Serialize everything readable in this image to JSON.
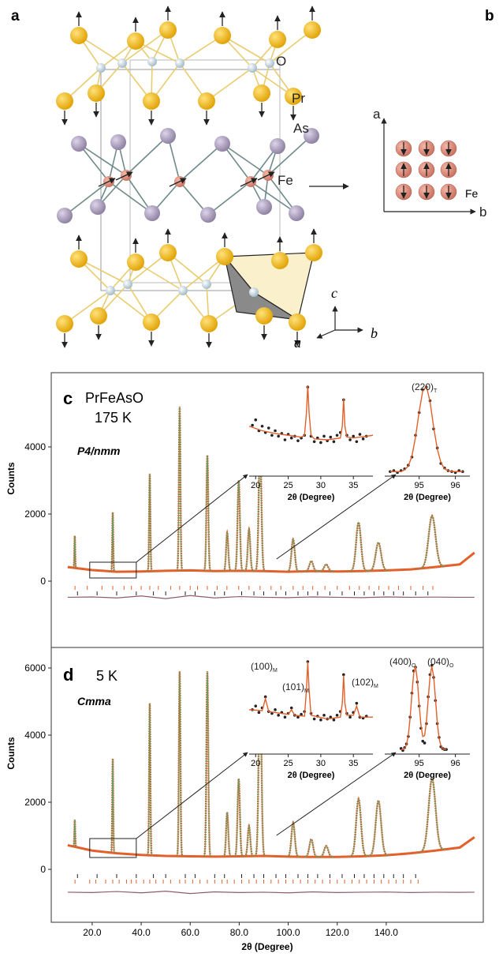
{
  "figure": {
    "panel_a": {
      "label": "a",
      "atoms": [
        "O",
        "Pr",
        "As",
        "Fe"
      ],
      "axes": [
        "c",
        "a",
        "b"
      ]
    },
    "panel_b": {
      "label": "b",
      "axes": [
        "a",
        "b"
      ],
      "atom": "Fe"
    }
  },
  "chart_data": [
    {
      "type": "diffraction",
      "panel": "c",
      "title": "PrFeAsO",
      "subtitle": "175 K",
      "space_group": "P4/nmm",
      "y_label": "Counts",
      "xlim": [
        3.3,
        179.6
      ],
      "ylim": [
        -1976,
        6212
      ],
      "yticks": [
        0,
        2000,
        4000
      ],
      "observed_color": "#e2602b",
      "calculated_color": "#5f9e63",
      "difference_color": "#8c5c70",
      "background": {
        "x": [
          10,
          20,
          30,
          40,
          50,
          60,
          70,
          80,
          90,
          100,
          110,
          120,
          130,
          140,
          150,
          160,
          170,
          176
        ],
        "values": [
          420,
          330,
          280,
          290,
          310,
          320,
          300,
          310,
          300,
          280,
          300,
          290,
          300,
          320,
          350,
          420,
          500,
          850
        ]
      },
      "peaks": {
        "x": [
          12.9,
          28.4,
          43.5,
          55.7,
          67.0,
          75.1,
          79.8,
          84.0,
          88.5,
          102.0,
          109.4,
          115.5,
          128.7,
          136.8,
          158.7
        ],
        "values": [
          1350,
          2050,
          3200,
          5200,
          3750,
          1450,
          3000,
          1550,
          4000,
          1250,
          600,
          500,
          1750,
          1150,
          1950
        ]
      },
      "reflections": [
        {
          "color": "#e2602b",
          "x": [
            13,
            18,
            24,
            28.4,
            33,
            36,
            40,
            43.5,
            47,
            52,
            55.7,
            60,
            63,
            67,
            71,
            75,
            79.8,
            84,
            88.5,
            93,
            97,
            102,
            106,
            110,
            115,
            120,
            125,
            129,
            133,
            137,
            141,
            145,
            150,
            155,
            159
          ]
        },
        {
          "color": "#222222",
          "x": [
            14,
            22,
            30,
            38,
            45,
            50,
            58,
            62,
            70,
            74,
            81,
            86,
            90,
            95,
            99,
            104,
            108,
            112,
            117,
            122,
            127,
            131,
            135,
            139,
            143,
            147,
            152,
            157
          ]
        }
      ],
      "difference": {
        "x": [
          10,
          20,
          30,
          40,
          50,
          60,
          70,
          80,
          90,
          100,
          110,
          120,
          130,
          140,
          150,
          160,
          170,
          176
        ],
        "values": [
          -480,
          -470,
          -500,
          -440,
          -520,
          -430,
          -500,
          -460,
          -480,
          -490,
          -470,
          -480,
          -490,
          -470,
          -480,
          -475,
          -480,
          -480
        ]
      },
      "insets": [
        {
          "type": "scatter",
          "xlim": [
            19,
            38
          ],
          "ylim": [
            0,
            100
          ],
          "xticks": [
            20,
            25,
            30,
            35
          ],
          "x_label": "2θ (Degree)",
          "observed": {
            "x": [
              19.5,
              20,
              20.5,
              21,
              21.5,
              22,
              22.5,
              23,
              23.5,
              24,
              24.5,
              25,
              25.5,
              26,
              26.5,
              27,
              27.5,
              28,
              28.5,
              29,
              29.5,
              30,
              30.5,
              31,
              31.5,
              32,
              32.5,
              33,
              33.5,
              34,
              34.5,
              35,
              35.5,
              36,
              36.5,
              37
            ],
            "values": [
              56,
              62,
              50,
              55,
              48,
              53,
              45,
              50,
              44,
              47,
              40,
              46,
              42,
              44,
              39,
              42,
              45,
              98,
              44,
              38,
              42,
              37,
              44,
              39,
              43,
              38,
              45,
              48,
              84,
              45,
              40,
              44,
              38,
              46,
              41,
              44
            ]
          },
          "calculated": {
            "x": [
              19,
              21,
              23,
              25,
              27,
              27.5,
              27.8,
              28,
              28.2,
              28.5,
              29,
              31,
              33,
              33.3,
              33.5,
              33.7,
              34,
              35,
              37,
              38
            ],
            "values": [
              55,
              50,
              47,
              45,
              43,
              45,
              70,
              100,
              70,
              45,
              41,
              40,
              42,
              55,
              85,
              55,
              43,
              42,
              44,
              45
            ]
          },
          "annotations": []
        },
        {
          "type": "scatter",
          "xlim": [
            94.05,
            96.4
          ],
          "ylim": [
            0,
            100
          ],
          "xticks": [
            95,
            96
          ],
          "x_label": "2θ (Degree)",
          "observed": {
            "x": [
              94.2,
              94.3,
              94.4,
              94.5,
              94.6,
              94.7,
              94.8,
              94.9,
              95.0,
              95.1,
              95.2,
              95.3,
              95.4,
              95.5,
              95.6,
              95.7,
              95.8,
              95.9,
              96.0,
              96.1,
              96.2
            ],
            "values": [
              5,
              6,
              4,
              6,
              8,
              12,
              21,
              45,
              70,
              95,
              98,
              83,
              52,
              31,
              14,
              9,
              6,
              5,
              4,
              6,
              5
            ]
          },
          "calculated": {
            "x": [
              94.2,
              94.3,
              94.4,
              94.5,
              94.6,
              94.7,
              94.8,
              94.9,
              95.0,
              95.1,
              95.2,
              95.3,
              95.4,
              95.5,
              95.6,
              95.7,
              95.8,
              95.9,
              96.0,
              96.1,
              96.2
            ],
            "values": [
              5,
              5,
              5,
              5,
              7,
              11,
              22,
              43,
              71,
              94,
              99,
              82,
              54,
              30,
              15,
              8,
              6,
              5,
              5,
              5,
              5
            ]
          },
          "annotations": [
            {
              "text": "(220)",
              "sub": "T"
            }
          ]
        }
      ]
    },
    {
      "type": "diffraction",
      "panel": "d",
      "title": "5 K",
      "space_group": "Cmma",
      "y_label": "Counts",
      "xlim": [
        3.3,
        179.6
      ],
      "ylim": [
        -1576,
        6612
      ],
      "yticks": [
        0,
        2000,
        4000,
        6000
      ],
      "xticks": [
        {
          "value": 20,
          "label": "20.0"
        },
        {
          "value": 40,
          "label": "40.0"
        },
        {
          "value": 60,
          "label": "60.0"
        },
        {
          "value": 80,
          "label": "80.0"
        },
        {
          "value": 100,
          "label": "100.0"
        },
        {
          "value": 120,
          "label": "120.0"
        },
        {
          "value": 140,
          "label": "140.0"
        }
      ],
      "x_label": "2θ (Degree)",
      "observed_color": "#e2602b",
      "calculated_color": "#5f9e63",
      "difference_color": "#8c5c70",
      "background": {
        "x": [
          10,
          20,
          30,
          40,
          50,
          60,
          70,
          80,
          90,
          100,
          110,
          120,
          130,
          140,
          150,
          160,
          170,
          176
        ],
        "values": [
          720,
          560,
          480,
          430,
          400,
          390,
          380,
          390,
          400,
          380,
          370,
          370,
          390,
          420,
          480,
          560,
          650,
          960
        ]
      },
      "peaks": {
        "x": [
          12.9,
          28.4,
          43.5,
          55.7,
          67.0,
          75.1,
          79.8,
          84.0,
          88.5,
          102.0,
          109.4,
          115.5,
          128.7,
          136.8,
          158.7
        ],
        "values": [
          1480,
          3300,
          4950,
          5900,
          5900,
          1700,
          2700,
          1300,
          5900,
          1400,
          900,
          700,
          2100,
          2050,
          2700
        ]
      },
      "reflections": [
        {
          "color": "#222222",
          "x": [
            14,
            22,
            30,
            38,
            45,
            50,
            58,
            62,
            70,
            74,
            81,
            86,
            90,
            95,
            99,
            104,
            108,
            112,
            117,
            122,
            127,
            131,
            135,
            139,
            143,
            147,
            152
          ]
        },
        {
          "color": "#e2602b",
          "x": [
            13,
            19,
            21.5,
            25.5,
            28.4,
            31,
            34,
            36,
            38,
            41,
            43.5,
            46,
            49,
            52,
            55.7,
            58,
            61,
            64,
            67,
            70,
            73,
            75.1,
            78,
            81,
            84,
            87,
            90,
            93,
            96,
            99,
            102,
            105,
            108,
            111,
            114,
            117,
            120,
            123,
            126,
            129,
            132,
            135,
            138,
            141,
            144,
            147,
            150,
            153
          ]
        }
      ],
      "difference": {
        "x": [
          10,
          20,
          30,
          40,
          50,
          60,
          70,
          80,
          90,
          100,
          110,
          120,
          130,
          140,
          150,
          160,
          170,
          176
        ],
        "values": [
          -680,
          -690,
          -660,
          -700,
          -650,
          -720,
          -670,
          -690,
          -680,
          -700,
          -670,
          -690,
          -680,
          -675,
          -690,
          -680,
          -685,
          -680
        ]
      },
      "insets": [
        {
          "type": "scatter",
          "xlim": [
            19,
            38
          ],
          "ylim": [
            0,
            100
          ],
          "xticks": [
            20,
            25,
            30,
            35
          ],
          "x_label": "2θ (Degree)",
          "observed": {
            "x": [
              19.5,
              20,
              20.5,
              21,
              21.5,
              22,
              22.5,
              23,
              23.5,
              24,
              24.5,
              25,
              25.5,
              26,
              26.5,
              27,
              27.5,
              28,
              28.5,
              29,
              29.5,
              30,
              30.5,
              31,
              31.5,
              32,
              32.5,
              33,
              33.5,
              34,
              34.5,
              35,
              35.5,
              36,
              36.5,
              37
            ],
            "values": [
              48,
              52,
              45,
              50,
              62,
              46,
              44,
              48,
              42,
              45,
              40,
              44,
              50,
              42,
              40,
              43,
              46,
              100,
              44,
              38,
              41,
              37,
              42,
              38,
              40,
              37,
              42,
              46,
              86,
              44,
              40,
              45,
              55,
              40,
              39,
              41
            ]
          },
          "calculated": {
            "x": [
              19,
              21,
              21.5,
              22,
              25,
              25.5,
              26,
              27.5,
              27.8,
              28,
              28.2,
              28.5,
              31,
              33,
              33.3,
              33.5,
              33.7,
              34,
              35,
              35.5,
              36,
              38
            ],
            "values": [
              48,
              47,
              60,
              46,
              43,
              48,
              42,
              41,
              70,
              100,
              70,
              42,
              38,
              40,
              55,
              85,
              55,
              42,
              42,
              52,
              40,
              40
            ]
          },
          "annotations": [
            {
              "text": "(100)",
              "sub": "M"
            },
            {
              "text": "(101)",
              "sub": "M"
            },
            {
              "text": "(102)",
              "sub": "M"
            }
          ]
        },
        {
          "type": "scatter",
          "xlim": [
            94.05,
            96.4
          ],
          "ylim": [
            0,
            100
          ],
          "xticks": [
            95,
            96
          ],
          "x_label": "2θ (Degree)",
          "observed": {
            "x": [
              94.5,
              94.55,
              94.6,
              94.65,
              94.7,
              94.75,
              94.8,
              94.85,
              94.9,
              94.95,
              95.0,
              95.05,
              95.1,
              95.15,
              95.2,
              95.25,
              95.3,
              95.35,
              95.4,
              95.45,
              95.5,
              95.55,
              95.6,
              95.65,
              95.7,
              95.75
            ],
            "values": [
              6,
              4,
              7,
              11,
              19,
              40,
              66,
              90,
              94,
              78,
              52,
              28,
              14,
              12,
              33,
              62,
              86,
              96,
              83,
              58,
              33,
              18,
              8,
              6,
              5,
              5
            ]
          },
          "calculated": {
            "x": [
              94.5,
              94.55,
              94.6,
              94.65,
              94.7,
              94.75,
              94.8,
              94.85,
              94.9,
              94.95,
              95.0,
              95.05,
              95.1,
              95.15,
              95.2,
              95.25,
              95.3,
              95.35,
              95.4,
              95.45,
              95.5,
              95.55,
              95.6,
              95.65,
              95.7,
              95.75
            ],
            "values": [
              5,
              5,
              6,
              10,
              20,
              39,
              65,
              88,
              95,
              80,
              54,
              31,
              19,
              20,
              35,
              60,
              84,
              95,
              84,
              60,
              34,
              17,
              9,
              6,
              5,
              5
            ]
          },
          "annotations": [
            {
              "text": "(400)",
              "sub": "O"
            },
            {
              "text": "(040)",
              "sub": "O"
            }
          ]
        }
      ]
    }
  ]
}
